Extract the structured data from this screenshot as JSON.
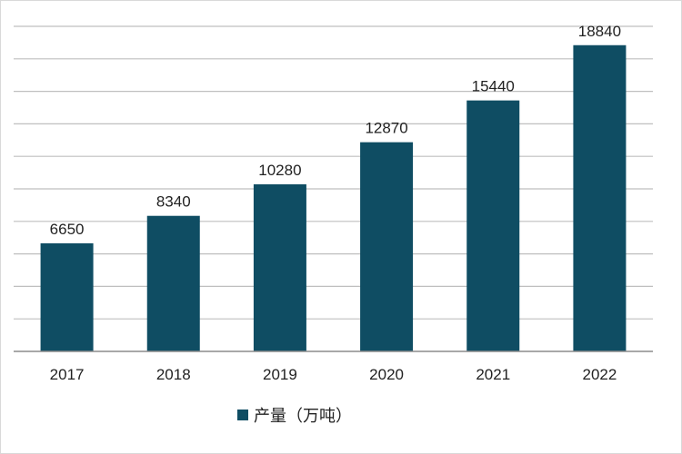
{
  "chart_data": {
    "type": "bar",
    "categories": [
      "2017",
      "2018",
      "2019",
      "2020",
      "2021",
      "2022"
    ],
    "series": [
      {
        "name": "产量（万吨）",
        "values": [
          6650,
          8340,
          10280,
          12870,
          15440,
          18840
        ]
      }
    ],
    "title": "",
    "xlabel": "",
    "ylabel": "",
    "ylim": [
      0,
      20000
    ],
    "y_gridlines": true,
    "y_tick_labels_shown": false,
    "legend_position": "bottom",
    "colors": {
      "bar": "#0f4d63",
      "grid": "#bfbfbf",
      "axis": "#8c8c8c"
    }
  }
}
